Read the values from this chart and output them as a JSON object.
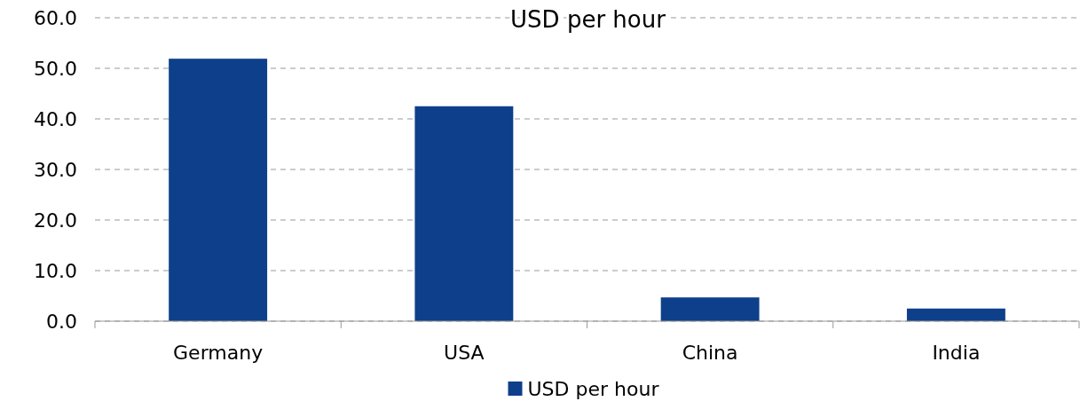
{
  "chart_data": {
    "type": "bar",
    "title": "USD per hour",
    "categories": [
      "Germany",
      "USA",
      "China",
      "India"
    ],
    "series": [
      {
        "name": "USD per hour",
        "color": "#0e3f8a",
        "values": [
          51.9,
          42.5,
          4.7,
          2.5
        ]
      }
    ],
    "ylim": [
      0,
      60
    ],
    "yticks": [
      {
        "value": 0,
        "label": "0.0"
      },
      {
        "value": 10,
        "label": "10.0"
      },
      {
        "value": 20,
        "label": "20.0"
      },
      {
        "value": 30,
        "label": "30.0"
      },
      {
        "value": 40,
        "label": "40.0"
      },
      {
        "value": 50,
        "label": "50.0"
      },
      {
        "value": 60,
        "label": "60.0"
      }
    ],
    "grid": "y",
    "legend": "bottom"
  }
}
